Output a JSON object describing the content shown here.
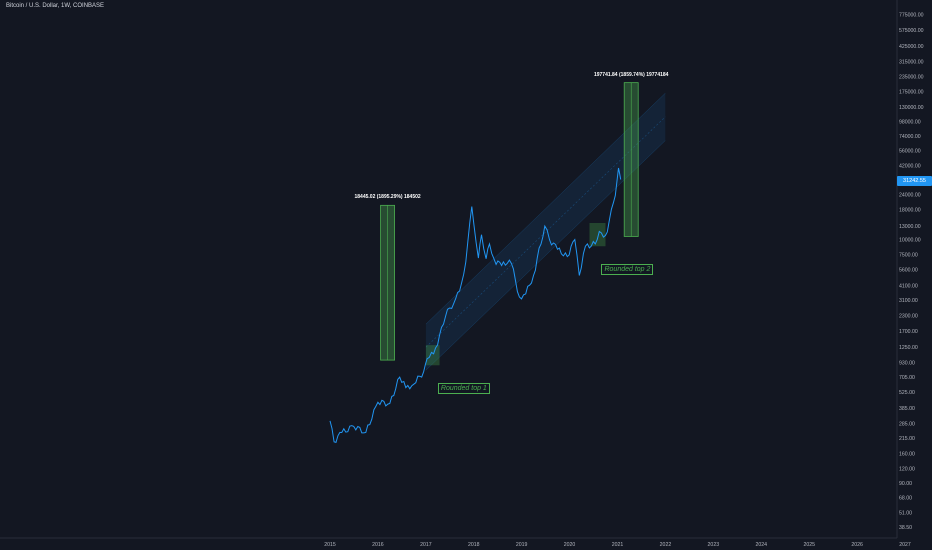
{
  "header": {
    "symbol": "Bitcoin / U.S. Dollar, 1W, COINBASE"
  },
  "colors": {
    "background": "#131722",
    "price_line": "#2196f3",
    "channel": "#2196f3",
    "range_box": "#4caf50",
    "axis_text": "#b2b5be",
    "badge": "#2196f3"
  },
  "price_axis": {
    "labels": [
      "775000.00",
      "575000.00",
      "425000.00",
      "315000.00",
      "235000.00",
      "175000.00",
      "130000.00",
      "98000.00",
      "74000.00",
      "56000.00",
      "42000.00",
      "31000.00",
      "24000.00",
      "18000.00",
      "13000.00",
      "10000.00",
      "7500.00",
      "5600.00",
      "4100.00",
      "3100.00",
      "2300.00",
      "1700.00",
      "1250.00",
      "930.00",
      "705.00",
      "525.00",
      "385.00",
      "285.00",
      "215.00",
      "160.00",
      "120.00",
      "90.00",
      "68.00",
      "51.00",
      "38.50"
    ],
    "current_price": "31242.55"
  },
  "time_axis": {
    "labels": [
      "2015",
      "2016",
      "2017",
      "2018",
      "2019",
      "2020",
      "2021",
      "2022",
      "2023",
      "2024",
      "2025",
      "2026",
      "2027"
    ]
  },
  "annotations": {
    "range1_label": "18445.02 (1895.29%) 184502",
    "range2_label": "197741.84 (1859.74%) 19774184",
    "note1": "Rounded top 1",
    "note2": "Rounded top 2"
  },
  "chart_data": {
    "type": "line",
    "title": "Bitcoin / U.S. Dollar, 1W, COINBASE",
    "yscale": "log",
    "ylim": [
      35,
      900000
    ],
    "xlim": [
      "2015-01-01",
      "2027-01-01"
    ],
    "series": [
      {
        "name": "Bitcoin / U.S. Dollar",
        "x": [
          "2015-01-01",
          "2015-02-01",
          "2015-04-01",
          "2015-07-01",
          "2015-10-01",
          "2016-01-01",
          "2016-04-01",
          "2016-06-15",
          "2016-08-01",
          "2016-10-01",
          "2016-12-15",
          "2017-01-10",
          "2017-03-01",
          "2017-05-15",
          "2017-06-15",
          "2017-08-01",
          "2017-09-15",
          "2017-11-01",
          "2017-12-17",
          "2018-02-05",
          "2018-03-01",
          "2018-04-05",
          "2018-05-01",
          "2018-06-20",
          "2018-08-15",
          "2018-10-15",
          "2018-12-15",
          "2019-02-01",
          "2019-04-01",
          "2019-06-26",
          "2019-08-01",
          "2019-10-01",
          "2019-12-15",
          "2020-02-10",
          "2020-03-15",
          "2020-05-01",
          "2020-07-15",
          "2020-08-15",
          "2020-09-15",
          "2020-10-15",
          "2020-11-15",
          "2020-12-15",
          "2021-01-08",
          "2021-01-25"
        ],
        "y": [
          300,
          200,
          240,
          270,
          240,
          430,
          420,
          700,
          570,
          610,
          780,
          1000,
          1100,
          1950,
          2600,
          2900,
          3700,
          6500,
          19000,
          7000,
          11000,
          6900,
          9200,
          6200,
          6500,
          6300,
          3300,
          3500,
          5000,
          13000,
          10000,
          8300,
          7200,
          10000,
          5000,
          8800,
          9200,
          11700,
          10500,
          11600,
          18000,
          23500,
          40000,
          32000
        ]
      }
    ],
    "channel": {
      "type": "parallel_channel",
      "x": [
        "2017-01-01",
        "2021-12-31"
      ],
      "lower": [
        800,
        68000
      ],
      "upper": [
        1950,
        170000
      ]
    },
    "ranges": [
      {
        "x": "2016-03-15",
        "from": 973,
        "to": 19418,
        "label": "18445.02 (1895.29%) 184502"
      },
      {
        "x": "2021-04-15",
        "from": 10633,
        "to": 208375,
        "label": "197741.84 (1859.74%) 19774184"
      }
    ],
    "boxes": [
      {
        "name": "Rounded top 1",
        "x": [
          "2017-01-01",
          "2017-04-15"
        ],
        "y": [
          880,
          1300
        ]
      },
      {
        "name": "Rounded top 2",
        "x": [
          "2020-06-01",
          "2020-10-01"
        ],
        "y": [
          8800,
          13800
        ]
      }
    ]
  }
}
